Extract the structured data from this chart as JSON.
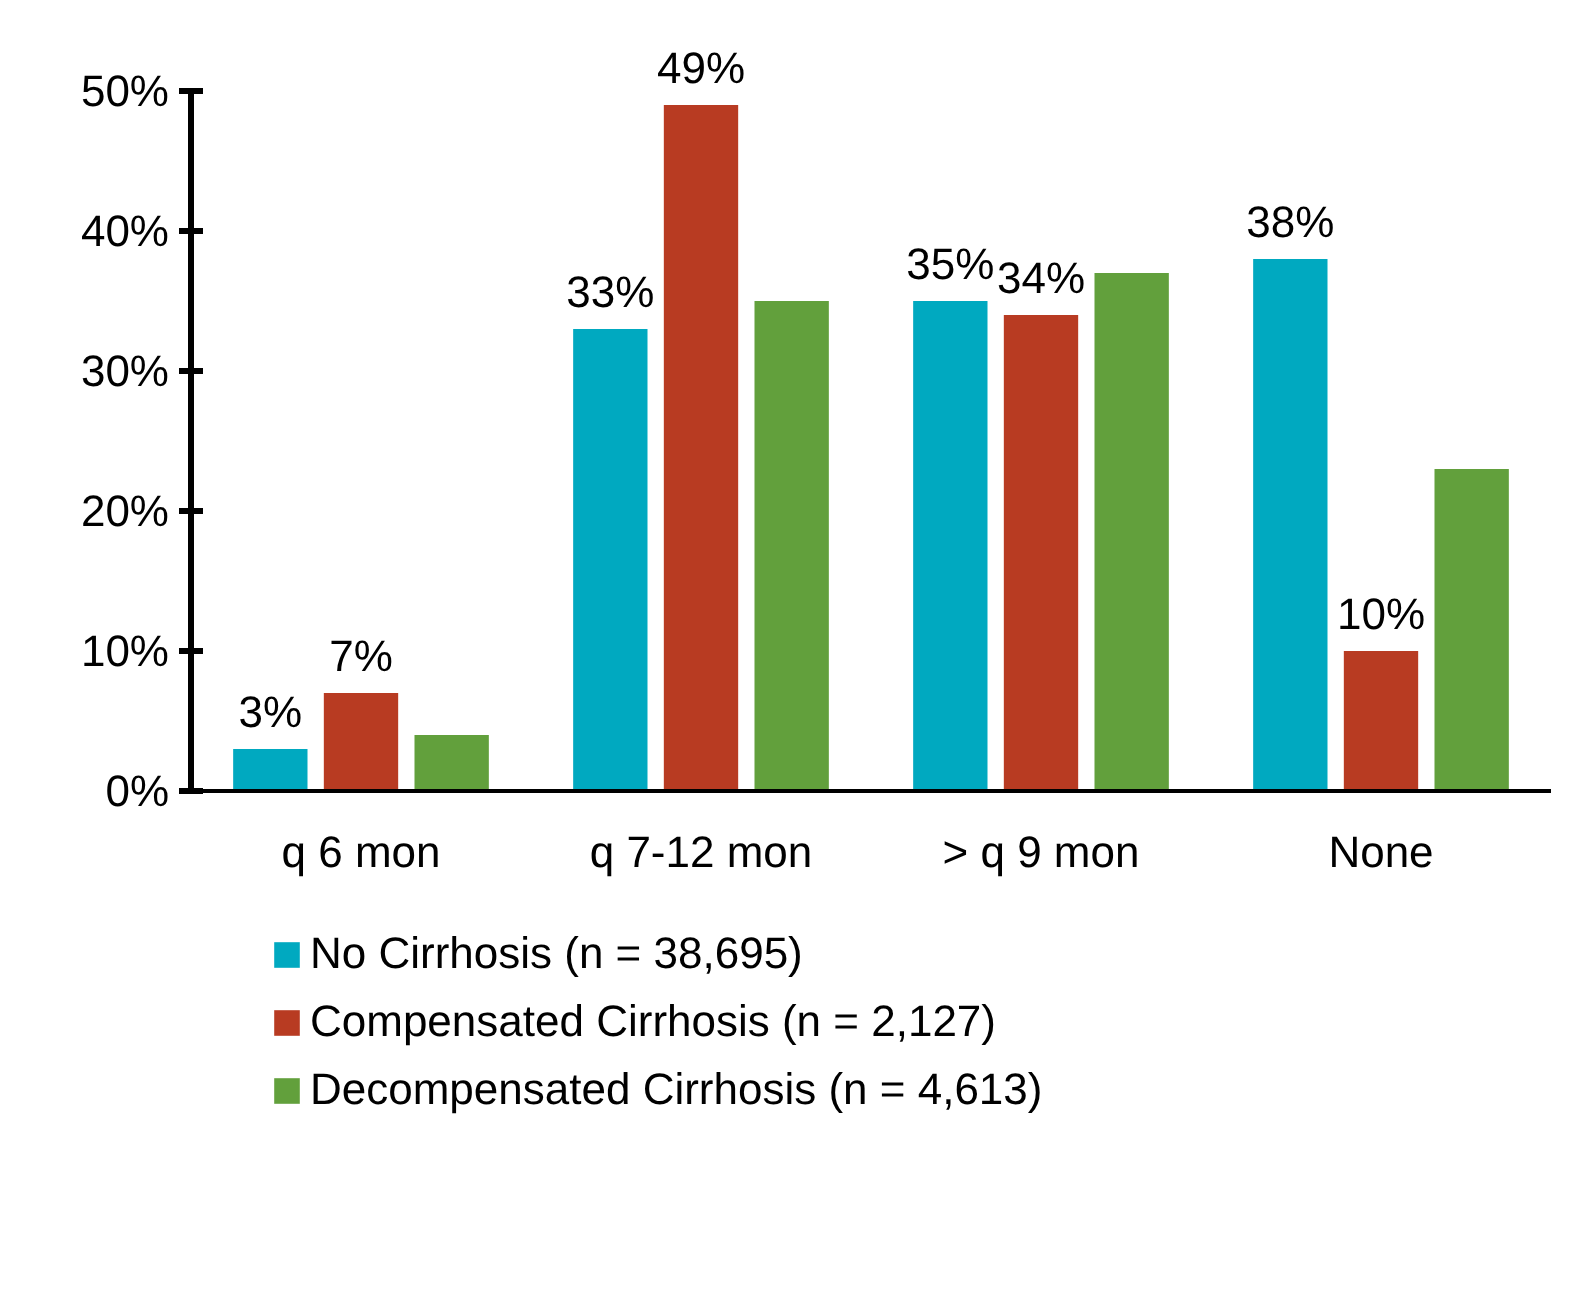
{
  "chart_data": {
    "type": "bar",
    "categories": [
      "q 6 mon",
      "q 7-12 mon",
      "> q 9 mon",
      "None"
    ],
    "series": [
      {
        "name": "No Cirrhosis (n = 38,695)",
        "color": "#00a9c0",
        "values": [
          3,
          33,
          35,
          38
        ],
        "value_labels": [
          "3%",
          "33%",
          "35%",
          "38%"
        ]
      },
      {
        "name": "Compensated Cirrhosis (n = 2,127)",
        "color": "#b83b22",
        "values": [
          7,
          49,
          34,
          10
        ],
        "value_labels": [
          "7%",
          "49%",
          "34%",
          "10%"
        ]
      },
      {
        "name": "Decompensated Cirrhosis (n = 4,613)",
        "color": "#62a03c",
        "values": [
          4,
          35,
          37,
          23
        ],
        "value_labels": [
          null,
          null,
          null,
          null
        ]
      }
    ],
    "ylim": [
      0,
      50
    ],
    "yticks": [
      {
        "value": 0,
        "label": "0%"
      },
      {
        "value": 10,
        "label": "10%"
      },
      {
        "value": 20,
        "label": "20%"
      },
      {
        "value": 30,
        "label": "30%"
      },
      {
        "value": 40,
        "label": "40%"
      },
      {
        "value": 50,
        "label": "50%"
      }
    ],
    "grid": false,
    "legend": "bottom"
  }
}
